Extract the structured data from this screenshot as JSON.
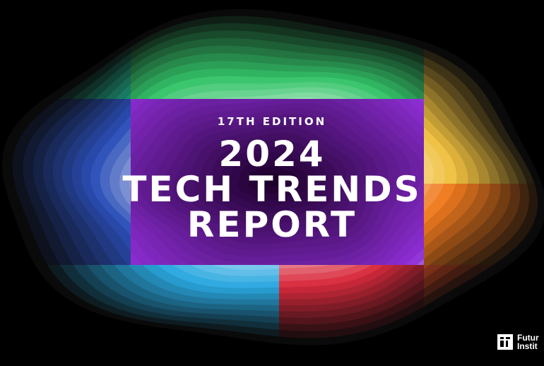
{
  "cover": {
    "edition": "17TH EDITION",
    "title_line_1": "2024",
    "title_line_2": "TECH TRENDS",
    "title_line_3": "REPORT"
  },
  "logo": {
    "line_1": "Futur",
    "line_2": "Instit"
  },
  "colors": {
    "background": "#000000",
    "text": "#ffffff",
    "quadrants": [
      "#1fae8a",
      "#35c46a",
      "#f0c040",
      "#2b4fb8",
      "#8e2ed6",
      "#f07a1e",
      "#2aa8e0",
      "#d82a3c",
      "#ff5a2a"
    ]
  }
}
